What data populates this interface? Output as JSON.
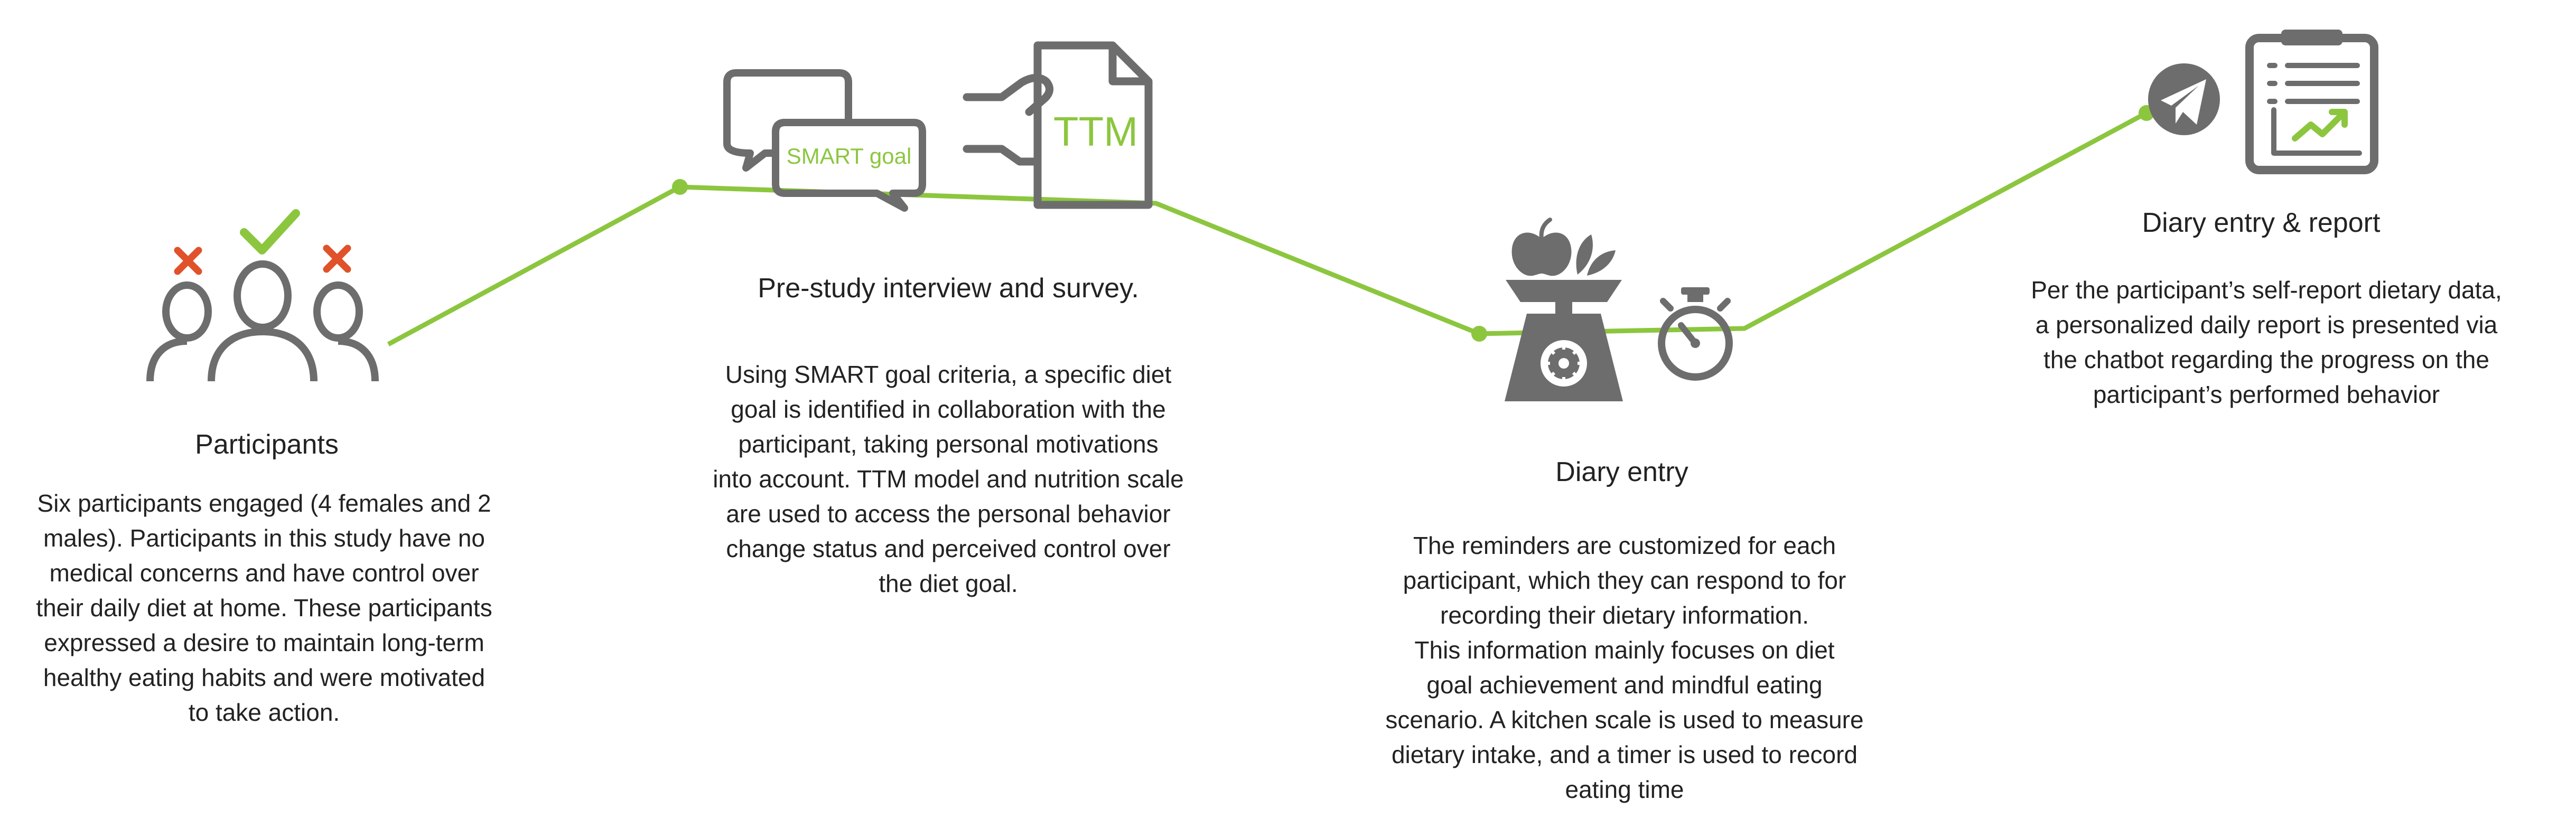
{
  "colors": {
    "accent_green": "#8cc63f",
    "icon_gray": "#6d6d6d",
    "cross_red": "#e0522a",
    "text": "#222222"
  },
  "steps": [
    {
      "title": "Participants",
      "icons": [
        "people-group-icon",
        "check-icon",
        "cross-icon"
      ],
      "lines": [
        "Six participants engaged (4 females and 2",
        "males). Participants in this study have no",
        "medical concerns and have control over",
        "their daily diet at home. These participants",
        "expressed a desire to maintain long-term",
        "healthy eating habits and were motivated",
        "to take action."
      ]
    },
    {
      "title": "Pre-study interview and survey.",
      "icons": [
        "chat-bubbles-icon",
        "document-icon"
      ],
      "icon_labels": {
        "chat": "SMART goal",
        "doc": "TTM"
      },
      "lines": [
        "Using SMART goal criteria, a specific diet",
        "goal is identified in collaboration with the",
        "participant, taking personal motivations",
        "into account. TTM model and nutrition scale",
        "are used to access the personal behavior",
        "change status and perceived control over",
        "the diet goal."
      ]
    },
    {
      "title": "Diary entry",
      "icons": [
        "kitchen-scale-icon",
        "stopwatch-icon"
      ],
      "lines": [
        "The reminders are customized for each",
        "participant, which they can respond to for",
        "recording their dietary information.",
        "This information mainly focuses on diet",
        "goal achievement and mindful eating",
        "scenario. A kitchen scale is used to measure",
        "dietary intake, and a timer is used to record",
        "eating time"
      ]
    },
    {
      "title": "Diary entry & report",
      "icons": [
        "telegram-icon",
        "report-clipboard-icon"
      ],
      "lines": [
        "Per the participant’s self-report dietary data,",
        "a personalized daily report is presented via",
        "the chatbot regarding the progress on the",
        "participant’s performed behavior"
      ]
    }
  ]
}
